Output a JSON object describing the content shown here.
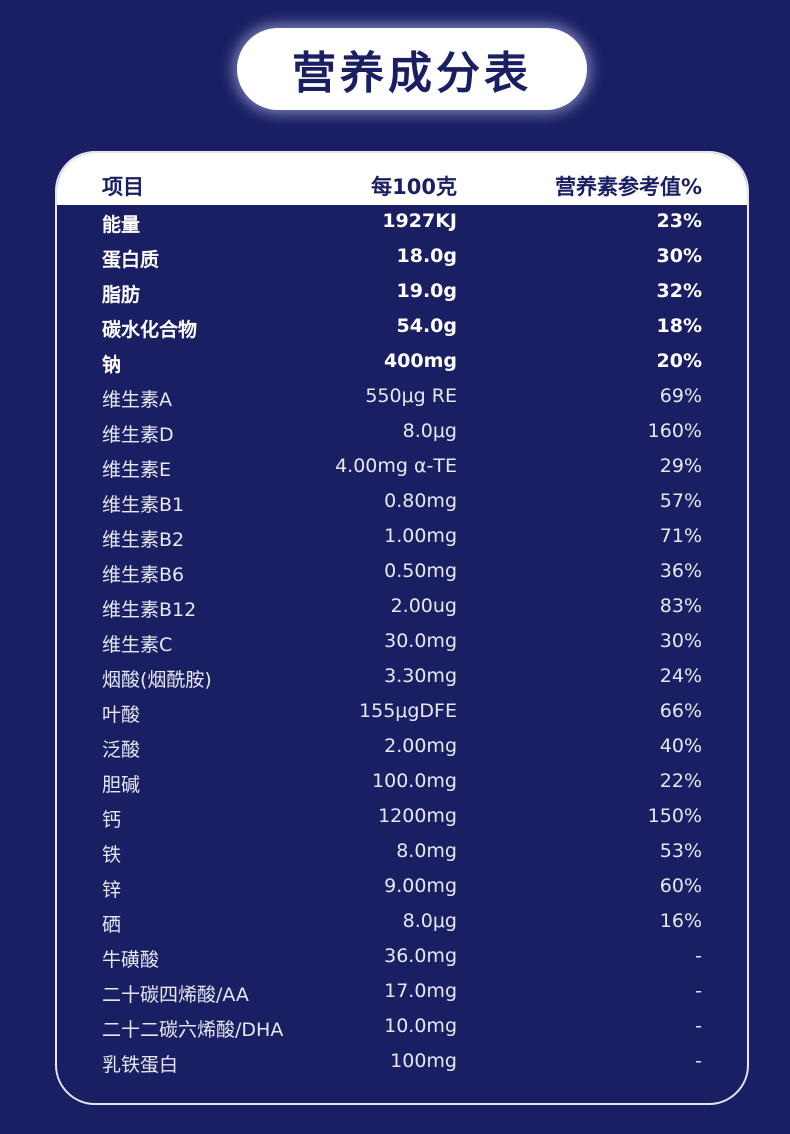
{
  "title": "营养成分表",
  "header": {
    "item": "项目",
    "per100": "每100克",
    "nrv": "营养素参考值%"
  },
  "rows": [
    {
      "name": "能量",
      "amount": "1927KJ",
      "nrv": "23%",
      "bold": true
    },
    {
      "name": "蛋白质",
      "amount": "18.0g",
      "nrv": "30%",
      "bold": true
    },
    {
      "name": "脂肪",
      "amount": "19.0g",
      "nrv": "32%",
      "bold": true
    },
    {
      "name": "碳水化合物",
      "amount": "54.0g",
      "nrv": "18%",
      "bold": true
    },
    {
      "name": "钠",
      "amount": "400mg",
      "nrv": "20%",
      "bold": true
    },
    {
      "name": "维生素A",
      "amount": "550μg RE",
      "nrv": "69%"
    },
    {
      "name": "维生素D",
      "amount": "8.0μg",
      "nrv": "160%"
    },
    {
      "name": "维生素E",
      "amount": "4.00mg α-TE",
      "nrv": "29%"
    },
    {
      "name": "维生素B1",
      "amount": "0.80mg",
      "nrv": "57%"
    },
    {
      "name": "维生素B2",
      "amount": "1.00mg",
      "nrv": "71%"
    },
    {
      "name": "维生素B6",
      "amount": "0.50mg",
      "nrv": "36%"
    },
    {
      "name": "维生素B12",
      "amount": "2.00ug",
      "nrv": "83%"
    },
    {
      "name": "维生素C",
      "amount": "30.0mg",
      "nrv": "30%"
    },
    {
      "name": "烟酸(烟酰胺)",
      "amount": "3.30mg",
      "nrv": "24%"
    },
    {
      "name": "叶酸",
      "amount": "155μgDFE",
      "nrv": "66%"
    },
    {
      "name": "泛酸",
      "amount": "2.00mg",
      "nrv": "40%"
    },
    {
      "name": "胆碱",
      "amount": "100.0mg",
      "nrv": "22%"
    },
    {
      "name": "钙",
      "amount": "1200mg",
      "nrv": "150%"
    },
    {
      "name": "铁",
      "amount": "8.0mg",
      "nrv": "53%"
    },
    {
      "name": "锌",
      "amount": "9.00mg",
      "nrv": "60%"
    },
    {
      "name": "硒",
      "amount": "8.0μg",
      "nrv": "16%"
    },
    {
      "name": "牛磺酸",
      "amount": "36.0mg",
      "nrv": "-"
    },
    {
      "name": "二十碳四烯酸/AA",
      "amount": "17.0mg",
      "nrv": "-"
    },
    {
      "name": "二十二碳六烯酸/DHA",
      "amount": "10.0mg",
      "nrv": "-"
    },
    {
      "name": "乳铁蛋白",
      "amount": "100mg",
      "nrv": "-"
    }
  ]
}
